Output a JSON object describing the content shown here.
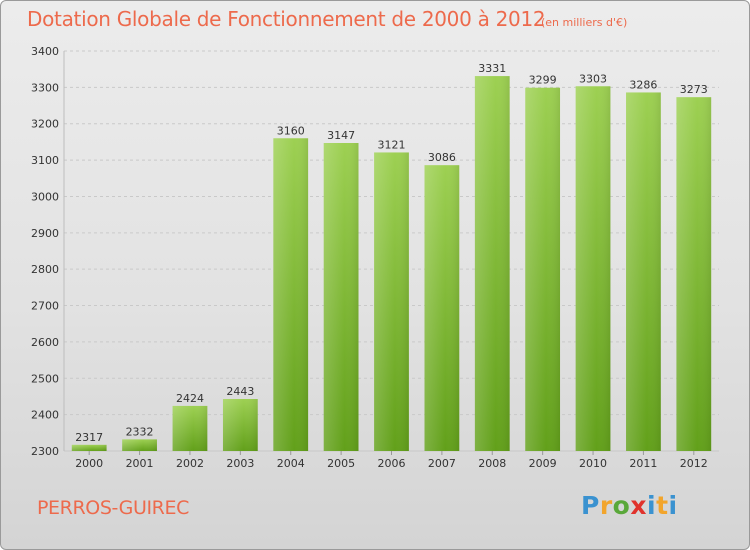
{
  "title": "Dotation Globale de Fonctionnement de 2000 à 2012",
  "subtitle": "(en milliers d'€)",
  "place": "PERROS-GUIREC",
  "logo": {
    "text": "Proxiti",
    "letters": [
      "P",
      "r",
      "o",
      "x",
      "i",
      "t",
      "i"
    ]
  },
  "colors": {
    "title": "#ed6a4c",
    "bar_top": "#9dd052",
    "bar_bottom": "#62a01a",
    "grid": "#c9c9c9",
    "axis_text": "#333333"
  },
  "chart_data": {
    "type": "bar",
    "categories": [
      "2000",
      "2001",
      "2002",
      "2003",
      "2004",
      "2005",
      "2006",
      "2007",
      "2008",
      "2009",
      "2010",
      "2011",
      "2012"
    ],
    "values": [
      2317,
      2332,
      2424,
      2443,
      3160,
      3147,
      3121,
      3086,
      3331,
      3299,
      3303,
      3286,
      3273
    ],
    "value_labels": [
      "2317",
      "2332",
      "2424",
      "2443",
      "3160",
      "3147",
      "3121",
      "3086",
      "3331",
      "3299",
      "3303",
      "3286",
      "3273"
    ],
    "yticks": [
      2300,
      2400,
      2500,
      2600,
      2700,
      2800,
      2900,
      3000,
      3100,
      3200,
      3300,
      3400
    ],
    "ytick_labels": [
      "2300",
      "2400",
      "2500",
      "2600",
      "2700",
      "2800",
      "2900",
      "3000",
      "3100",
      "3200",
      "3300",
      "3400"
    ],
    "ylim": [
      2300,
      3400
    ],
    "grid": true,
    "title": "Dotation Globale de Fonctionnement de 2000 à 2012",
    "xlabel": "",
    "ylabel": ""
  }
}
